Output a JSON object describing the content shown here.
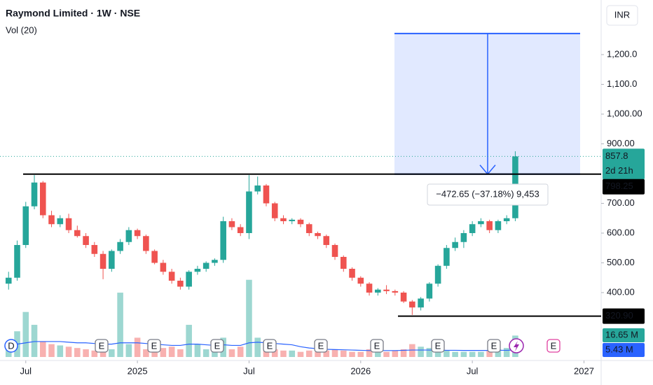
{
  "chart_data": {
    "type": "candlestick",
    "title": "Raymond Limited · 1W · NSE",
    "subtitle": "Vol (20)",
    "currency": "INR",
    "up_color": "#26a69a",
    "down_color": "#ef5350",
    "open": [
      430,
      450,
      560,
      690,
      770,
      660,
      630,
      650,
      610,
      590,
      560,
      530,
      480,
      540,
      570,
      610,
      590,
      540,
      500,
      470,
      440,
      420,
      470,
      480,
      500,
      510,
      640,
      620,
      600,
      740,
      760,
      700,
      650,
      640,
      645,
      630,
      600,
      590,
      560,
      520,
      480,
      450,
      430,
      400,
      410,
      405,
      400,
      370,
      350,
      380,
      430,
      490,
      550,
      570,
      600,
      630,
      640,
      610,
      640,
      650
    ],
    "high": [
      470,
      575,
      705,
      795,
      775,
      675,
      660,
      665,
      625,
      600,
      570,
      540,
      545,
      580,
      620,
      615,
      595,
      545,
      510,
      480,
      450,
      475,
      490,
      505,
      515,
      655,
      650,
      630,
      795,
      790,
      765,
      705,
      660,
      650,
      650,
      635,
      605,
      595,
      565,
      525,
      485,
      455,
      435,
      415,
      425,
      410,
      405,
      375,
      385,
      435,
      495,
      560,
      585,
      610,
      640,
      650,
      645,
      645,
      660,
      875
    ],
    "low": [
      410,
      440,
      550,
      680,
      650,
      620,
      620,
      600,
      585,
      550,
      520,
      445,
      470,
      530,
      560,
      580,
      530,
      495,
      460,
      430,
      410,
      410,
      460,
      470,
      490,
      500,
      610,
      590,
      580,
      730,
      690,
      640,
      630,
      630,
      620,
      590,
      580,
      550,
      510,
      470,
      440,
      420,
      390,
      390,
      395,
      390,
      365,
      325,
      340,
      370,
      420,
      480,
      540,
      550,
      590,
      620,
      600,
      600,
      630,
      640
    ],
    "close": [
      450,
      560,
      690,
      770,
      660,
      630,
      650,
      610,
      590,
      560,
      530,
      480,
      540,
      570,
      610,
      590,
      540,
      500,
      470,
      440,
      420,
      470,
      480,
      500,
      510,
      640,
      620,
      600,
      740,
      760,
      700,
      650,
      640,
      645,
      630,
      600,
      590,
      560,
      520,
      480,
      450,
      430,
      400,
      410,
      405,
      400,
      370,
      350,
      380,
      430,
      490,
      550,
      570,
      600,
      630,
      640,
      610,
      640,
      650,
      857.8
    ],
    "last_price_countdown": "2d 21h",
    "xlim": [
      -1,
      69
    ],
    "xticks": [
      {
        "value": 2,
        "label": "Jul"
      },
      {
        "value": 15,
        "label": "2025"
      },
      {
        "value": 28,
        "label": "Jul"
      },
      {
        "value": 41,
        "label": "2026"
      },
      {
        "value": 54,
        "label": "Jul"
      },
      {
        "value": 67,
        "label": "2027"
      }
    ],
    "ylim": [
      183.5,
      1360
    ],
    "yticks": [
      {
        "value": 1200,
        "label": "1,200.0"
      },
      {
        "value": 1100,
        "label": "1,100.0"
      },
      {
        "value": 1000,
        "label": "1,000.00"
      },
      {
        "value": 900,
        "label": "900.00"
      },
      {
        "value": 700,
        "label": "700.00"
      },
      {
        "value": 600,
        "label": "600.00"
      },
      {
        "value": 500,
        "label": "500.00"
      },
      {
        "value": 400,
        "label": "400.00"
      }
    ],
    "levels": [
      {
        "value": 798.25,
        "label": "798.25"
      },
      {
        "value": 320.9,
        "label": "320.90"
      }
    ],
    "measure": {
      "from": 1270.9,
      "to": 798.25,
      "label": "−472.65 (−37.18%) 9,453",
      "color": "#2962ff"
    },
    "volume": {
      "values": [
        8,
        20,
        35,
        25,
        12,
        10,
        9,
        8,
        7,
        6,
        5,
        12,
        6,
        50,
        10,
        15,
        6,
        5,
        7,
        8,
        6,
        25,
        10,
        6,
        8,
        15,
        6,
        8,
        60,
        15,
        8,
        6,
        5,
        5,
        4,
        5,
        4,
        5,
        6,
        5,
        4,
        4,
        6,
        5,
        4,
        5,
        6,
        10,
        8,
        7,
        6,
        5,
        4,
        4,
        4,
        4,
        5,
        6,
        7,
        16.65
      ],
      "last_label": "16.65 M"
    },
    "volume_ma": {
      "values": [
        9,
        10,
        11,
        12,
        12,
        12,
        12,
        11.5,
        11,
        11,
        10.5,
        10,
        10,
        11,
        11,
        11,
        10.5,
        10,
        9.5,
        9,
        9,
        10,
        10,
        9.5,
        9,
        9.5,
        9,
        9,
        11,
        11.5,
        11,
        10.5,
        10,
        9.5,
        8,
        7,
        6.5,
        6,
        5.8,
        5.6,
        5.4,
        5.2,
        5,
        5,
        5,
        5,
        5.2,
        5.4,
        5.4,
        5.4,
        5.3,
        5.2,
        5.2,
        5.1,
        5.1,
        5.1,
        5.1,
        5.2,
        5.2,
        5.43
      ],
      "last_label": "5.43 M",
      "color": "#2962ff"
    },
    "vlim": [
      0,
      272
    ],
    "events": [
      "D",
      "E",
      "E",
      "E",
      "E",
      "E",
      "E",
      "E",
      "E",
      "E"
    ]
  }
}
